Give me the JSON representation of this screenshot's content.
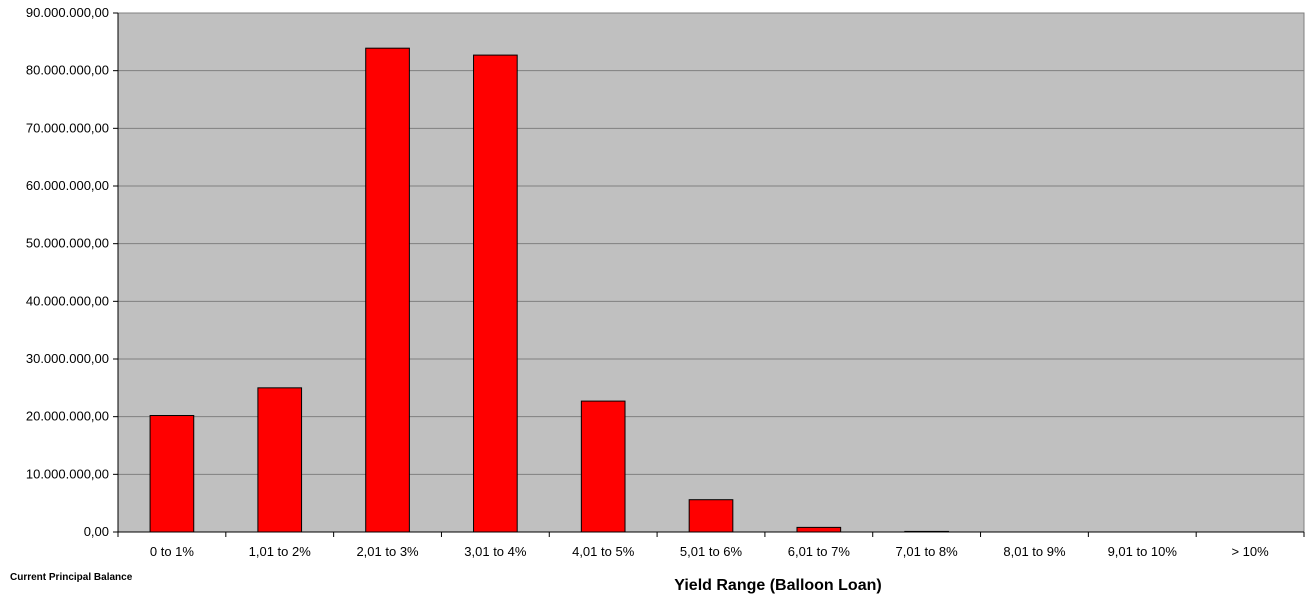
{
  "chart_data": {
    "type": "bar",
    "categories": [
      "0 to 1%",
      "1,01 to 2%",
      "2,01 to 3%",
      "3,01 to 4%",
      "4,01 to 5%",
      "5,01 to 6%",
      "6,01 to 7%",
      "7,01 to 8%",
      "8,01 to 9%",
      "9,01 to 10%",
      "> 10%"
    ],
    "values": [
      20200000,
      25000000,
      83900000,
      82700000,
      22700000,
      5600000,
      800000,
      100000,
      0,
      0,
      0
    ],
    "xlabel": "Yield Range (Balloon Loan)",
    "ylabel": "Current Principal  Balance",
    "ylim": [
      0,
      90000000
    ],
    "yticks": [
      0,
      10000000,
      20000000,
      30000000,
      40000000,
      50000000,
      60000000,
      70000000,
      80000000,
      90000000
    ],
    "ytick_labels": [
      "0,00",
      "10.000.000,00",
      "20.000.000,00",
      "30.000.000,00",
      "40.000.000,00",
      "50.000.000,00",
      "60.000.000,00",
      "70.000.000,00",
      "80.000.000,00",
      "90.000.000,00"
    ],
    "grid": true,
    "legend": "none",
    "colors": {
      "bar": "#ff0000",
      "plot_background": "#c0c0c0",
      "bar_outline": "#000000"
    }
  }
}
